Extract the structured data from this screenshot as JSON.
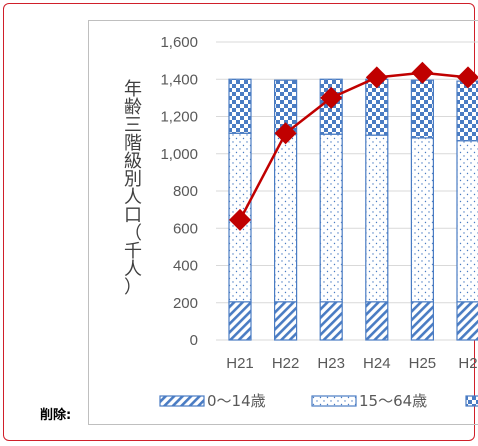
{
  "note": "削除:",
  "colors": {
    "bar_blue": "#4a7cc3",
    "line_red": "#c00000",
    "grid": "#d9d9d9",
    "frame_red": "#d01f2a"
  },
  "chart_data": {
    "type": "bar",
    "ylabel": "年齢三階級別人口（千人）",
    "ylim": [
      0,
      1600
    ],
    "yticks": [
      "0",
      "200",
      "400",
      "600",
      "800",
      "1,000",
      "1,200",
      "1,400",
      "1,600"
    ],
    "categories": [
      "H21",
      "H22",
      "H23",
      "H24",
      "H25",
      "H2"
    ],
    "series": [
      {
        "name": "0～14歳",
        "kind": "bar",
        "pattern": "diagonal-hatch",
        "values": [
          205,
          205,
          205,
          205,
          205,
          205
        ]
      },
      {
        "name": "15～64歳",
        "kind": "bar",
        "pattern": "dots",
        "values": [
          905,
          900,
          900,
          895,
          880,
          865
        ]
      },
      {
        "kind": "bar",
        "pattern": "checker",
        "values": [
          290,
          290,
          295,
          300,
          310,
          320
        ]
      },
      {
        "kind": "line",
        "marker": "diamond",
        "values": [
          645,
          1110,
          1300,
          1410,
          1435,
          1410
        ]
      }
    ],
    "legend": [
      "0～14歳",
      "15～64歳"
    ],
    "legend_position": "bottom",
    "grid": true
  }
}
